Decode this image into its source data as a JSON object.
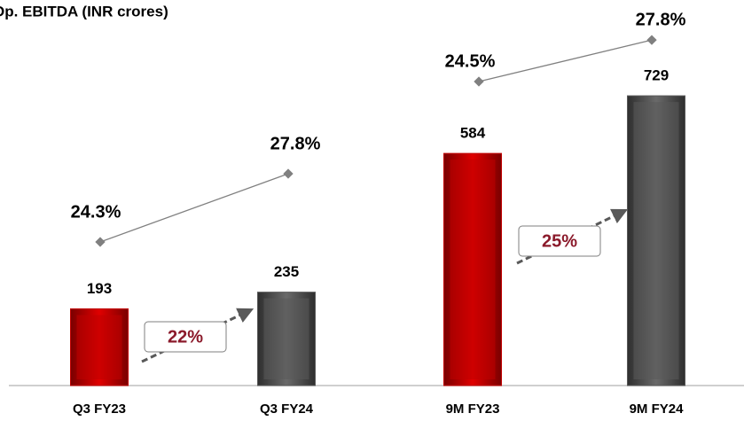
{
  "chart_data": {
    "type": "bar",
    "title": "Op. EBITDA (INR crores)",
    "categories": [
      "Q3 FY23",
      "Q3 FY24",
      "9M FY23",
      "9M FY24"
    ],
    "values": [
      193,
      235,
      584,
      729
    ],
    "colors": [
      "#c00000",
      "#595959",
      "#c00000",
      "#595959"
    ],
    "ylim": [
      0,
      970
    ],
    "margin": {
      "values": [
        24.3,
        27.8,
        24.5,
        27.8
      ],
      "value_labels": [
        "24.3%",
        "27.8%",
        "24.5%",
        "27.8%"
      ],
      "color": "#808080"
    },
    "growth": {
      "values": [
        22,
        25
      ],
      "value_labels": [
        "22%",
        "25%"
      ],
      "color": "#8b1a2b"
    }
  }
}
